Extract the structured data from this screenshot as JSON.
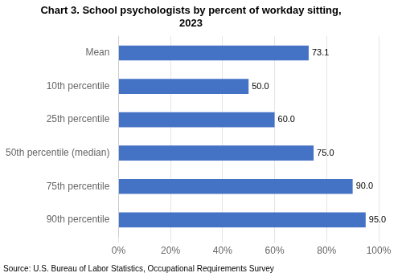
{
  "chart_data": {
    "type": "bar",
    "orientation": "horizontal",
    "title": "Chart 3. School psychologists by percent of workday sitting,\n2023",
    "categories": [
      "Mean",
      "10th percentile",
      "25th percentile",
      "50th percentile (median)",
      "75th percentile",
      "90th percentile"
    ],
    "values": [
      73.1,
      50.0,
      60.0,
      75.0,
      90.0,
      95.0
    ],
    "value_labels": [
      "73.1",
      "50.0",
      "60.0",
      "75.0",
      "90.0",
      "95.0"
    ],
    "data_labels": true,
    "color": "#4472C4",
    "xlim": [
      0,
      100
    ],
    "xticks": [
      {
        "value": 0,
        "label": "0%"
      },
      {
        "value": 20,
        "label": "20%"
      },
      {
        "value": 40,
        "label": "40%"
      },
      {
        "value": 60,
        "label": "60%"
      },
      {
        "value": 80,
        "label": "80%"
      },
      {
        "value": 100,
        "label": "100%"
      }
    ],
    "grid": true,
    "annotations": [
      "Source: U.S. Bureau of Labor Statistics, Occupational Requirements Survey"
    ]
  }
}
